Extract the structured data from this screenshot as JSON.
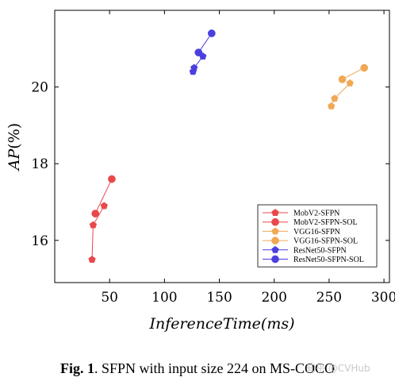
{
  "chart_data": {
    "type": "scatter",
    "xlabel": "InferenceTime(ms)",
    "ylabel_italic": "AP",
    "ylabel_unit": "(%)",
    "xlim": [
      0,
      305
    ],
    "ylim": [
      14.9,
      22.0
    ],
    "xticks": [
      50,
      100,
      150,
      200,
      250,
      300
    ],
    "yticks": [
      16,
      18,
      20
    ],
    "grid": false,
    "legend_position": "bottom-right",
    "series": [
      {
        "name": "MobV2-SFPN",
        "color": "#e8484b",
        "marker": "pentagon",
        "x": [
          34,
          35,
          45
        ],
        "y": [
          15.5,
          16.4,
          16.9
        ]
      },
      {
        "name": "MobV2-SFPN-SOL",
        "color": "#e8484b",
        "marker": "circle",
        "x": [
          37,
          52
        ],
        "y": [
          16.7,
          17.6
        ]
      },
      {
        "name": "VGG16-SFPN",
        "color": "#f0a855",
        "marker": "pentagon",
        "x": [
          252,
          255,
          269
        ],
        "y": [
          19.5,
          19.7,
          20.1
        ]
      },
      {
        "name": "VGG16-SFPN-SOL",
        "color": "#f0a855",
        "marker": "circle",
        "x": [
          262,
          282
        ],
        "y": [
          20.2,
          20.5
        ]
      },
      {
        "name": "ResNet50-SFPN",
        "color": "#4b3fe0",
        "marker": "pentagon",
        "x": [
          126,
          127,
          135
        ],
        "y": [
          20.4,
          20.5,
          20.8
        ]
      },
      {
        "name": "ResNet50-SFPN-SOL",
        "color": "#4b3fe0",
        "marker": "circle",
        "x": [
          131,
          143
        ],
        "y": [
          20.9,
          21.4
        ]
      }
    ]
  },
  "caption": {
    "label": "Fig. 1",
    "text": ". SFPN with input size 224 on MS-COCO"
  },
  "watermark": "知乎 @CVHub"
}
